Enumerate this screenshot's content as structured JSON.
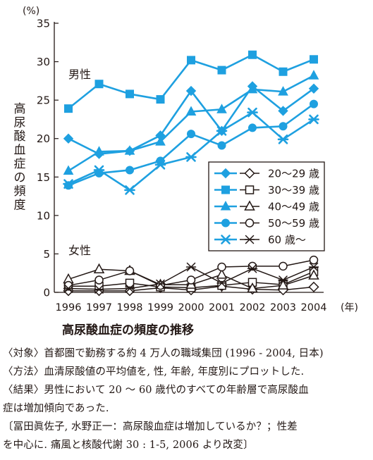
{
  "chart_data": {
    "type": "line",
    "title": "高尿酸血症の頻度の推移",
    "ylabel": "高尿酸血症の頻度",
    "yunit": "(%)",
    "xunit": "(年)",
    "ylim": [
      0,
      35
    ],
    "yticks": [
      "0",
      "5",
      "10",
      "15",
      "20",
      "25",
      "30",
      "35"
    ],
    "categories": [
      "1996",
      "1997",
      "1998",
      "1999",
      "2000",
      "2001",
      "2002",
      "2003",
      "2004"
    ],
    "group_labels": {
      "male": "男性",
      "female": "女性"
    },
    "legend_position": "right-middle",
    "male_color": "#1ea0e0",
    "female_color": "#231815",
    "series": [
      {
        "name": "20〜29 歳",
        "group": "male",
        "marker": "diamond",
        "values": [
          20.0,
          18.0,
          18.4,
          20.4,
          26.2,
          21.0,
          26.8,
          23.6,
          26.5
        ]
      },
      {
        "name": "30〜39 歳",
        "group": "male",
        "marker": "square",
        "values": [
          23.9,
          27.1,
          25.8,
          25.1,
          30.2,
          28.9,
          30.9,
          28.7,
          30.3
        ]
      },
      {
        "name": "40〜49 歳",
        "group": "male",
        "marker": "triangle",
        "values": [
          15.8,
          18.3,
          18.4,
          19.6,
          23.5,
          23.8,
          26.4,
          26.1,
          28.2
        ]
      },
      {
        "name": "50〜59 歳",
        "group": "male",
        "marker": "circle",
        "values": [
          13.9,
          15.5,
          15.9,
          17.1,
          20.6,
          19.1,
          21.4,
          21.6,
          24.5
        ]
      },
      {
        "name": "60 歳〜",
        "group": "male",
        "marker": "star",
        "values": [
          14.1,
          15.9,
          13.3,
          16.6,
          17.6,
          21.0,
          23.4,
          19.9,
          22.5
        ]
      },
      {
        "name": "20〜29 歳",
        "group": "female",
        "marker": "diamond",
        "values": [
          0.2,
          0.2,
          0.2,
          0.6,
          0.3,
          0.8,
          0.4,
          0.3,
          0.7
        ]
      },
      {
        "name": "30〜39 歳",
        "group": "female",
        "marker": "square",
        "values": [
          0.8,
          0.8,
          1.2,
          0.7,
          0.6,
          0.9,
          1.3,
          1.0,
          2.7
        ]
      },
      {
        "name": "40〜49 歳",
        "group": "female",
        "marker": "triangle",
        "values": [
          1.7,
          3.0,
          2.8,
          1.0,
          1.0,
          2.3,
          0.5,
          0.9,
          2.2
        ]
      },
      {
        "name": "50〜59 歳",
        "group": "female",
        "marker": "circle",
        "values": [
          0.9,
          1.6,
          2.8,
          0.9,
          1.6,
          3.3,
          3.4,
          3.4,
          4.2
        ]
      },
      {
        "name": "60 歳〜",
        "group": "female",
        "marker": "star",
        "values": [
          0.5,
          0.4,
          0.5,
          1.1,
          3.3,
          1.2,
          3.1,
          1.6,
          3.3
        ]
      }
    ]
  },
  "notes": [
    "〈対象〉首都圏で勤務する約 4 万人の職域集団 (1996 - 2004, 日本)",
    "〈方法〉血清尿酸値の平均値を, 性, 年齢, 年度別にプロットした.",
    "〈結果〉男性において 20 ～ 60 歳代のすべての年齢層で高尿酸血",
    "症は増加傾向であった.",
    "〔冨田眞佐子, 水野正一：高尿酸血症は増加しているか？；性差",
    "を中心に. 痛風と核酸代謝 30 : 1-5, 2006 より改変〕"
  ]
}
